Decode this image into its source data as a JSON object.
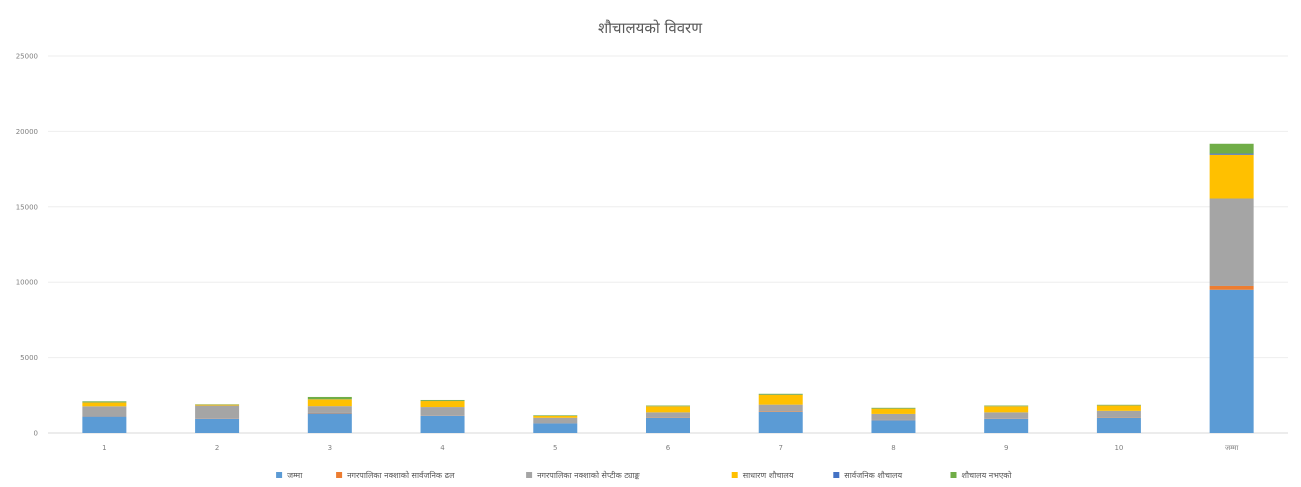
{
  "chart_data": {
    "type": "bar",
    "stacked": true,
    "title": "शौचालयको विवरण",
    "xlabel": "",
    "ylabel": "",
    "categories": [
      "1",
      "2",
      "3",
      "4",
      "5",
      "6",
      "7",
      "8",
      "9",
      "10",
      "जम्मा"
    ],
    "yticks": [
      "0",
      "5000",
      "10000",
      "15000",
      "20000",
      "25000"
    ],
    "ylim": [
      0,
      25000
    ],
    "grid": true,
    "legend_position": "bottom",
    "series": [
      {
        "name": "जम्मा",
        "color": "#5b9bd5",
        "values": [
          1100,
          950,
          1300,
          1150,
          650,
          1000,
          1400,
          850,
          950,
          1000,
          9500
        ]
      },
      {
        "name": "नगरपालिका नक्शाको सार्वजनिक ढल",
        "color": "#ed7d31",
        "values": [
          20,
          20,
          30,
          20,
          10,
          20,
          30,
          15,
          20,
          20,
          250
        ]
      },
      {
        "name": "नगरपालिका नक्शाको सेप्टीक ट्याङ्क",
        "color": "#a5a5a5",
        "values": [
          650,
          850,
          450,
          550,
          350,
          350,
          450,
          400,
          400,
          450,
          5800
        ]
      },
      {
        "name": "साधारण शौचालय",
        "color": "#ffc000",
        "values": [
          250,
          60,
          450,
          400,
          120,
          400,
          650,
          350,
          400,
          350,
          2900
        ]
      },
      {
        "name": "सार्वजनिक शौचालय",
        "color": "#4472c4",
        "values": [
          10,
          5,
          10,
          10,
          5,
          10,
          10,
          5,
          10,
          10,
          80
        ]
      },
      {
        "name": "शौचालय नभएको",
        "color": "#70ad47",
        "values": [
          70,
          20,
          150,
          60,
          40,
          40,
          60,
          50,
          40,
          40,
          650
        ]
      }
    ]
  }
}
